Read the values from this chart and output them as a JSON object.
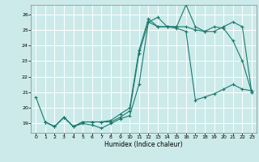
{
  "xlabel": "Humidex (Indice chaleur)",
  "bg_color": "#cceaea",
  "grid_color": "#ffffff",
  "line_color": "#1a7a6e",
  "xlim": [
    -0.5,
    23.5
  ],
  "ylim": [
    18.4,
    26.6
  ],
  "yticks": [
    19,
    20,
    21,
    22,
    23,
    24,
    25,
    26
  ],
  "xticks": [
    0,
    1,
    2,
    3,
    4,
    5,
    6,
    7,
    8,
    9,
    10,
    11,
    12,
    13,
    14,
    15,
    16,
    17,
    18,
    19,
    20,
    21,
    22,
    23
  ],
  "line1_x": [
    0,
    1,
    2,
    3,
    4,
    5,
    6,
    7,
    8,
    9,
    10,
    11,
    12,
    13,
    14,
    15,
    16,
    17,
    18,
    19,
    20,
    21,
    22,
    23
  ],
  "line1_y": [
    20.7,
    19.1,
    18.8,
    19.4,
    18.8,
    19.0,
    18.9,
    18.7,
    19.0,
    19.3,
    19.5,
    21.5,
    25.5,
    25.2,
    25.2,
    25.2,
    25.2,
    25.0,
    24.9,
    25.2,
    25.1,
    24.3,
    23.0,
    21.0
  ],
  "line2_x": [
    1,
    2,
    3,
    4,
    5,
    6,
    7,
    8,
    9,
    10,
    11,
    12,
    13,
    14,
    15,
    16,
    17,
    18,
    19,
    20,
    21,
    22,
    23
  ],
  "line2_y": [
    19.1,
    18.8,
    19.4,
    18.8,
    19.1,
    19.1,
    19.1,
    19.1,
    19.4,
    19.8,
    23.5,
    25.5,
    25.8,
    25.2,
    25.2,
    26.6,
    25.2,
    24.9,
    24.9,
    25.2,
    25.5,
    25.2,
    21.0
  ],
  "line3_x": [
    1,
    2,
    3,
    4,
    5,
    6,
    7,
    8,
    9,
    10,
    11,
    12,
    13,
    14,
    15,
    16,
    17,
    18,
    19,
    20,
    21,
    22,
    23
  ],
  "line3_y": [
    19.1,
    18.8,
    19.4,
    18.8,
    19.1,
    19.1,
    19.1,
    19.2,
    19.6,
    20.0,
    23.7,
    25.7,
    25.2,
    25.2,
    25.1,
    24.9,
    20.5,
    20.7,
    20.9,
    21.2,
    21.5,
    21.2,
    21.1
  ]
}
